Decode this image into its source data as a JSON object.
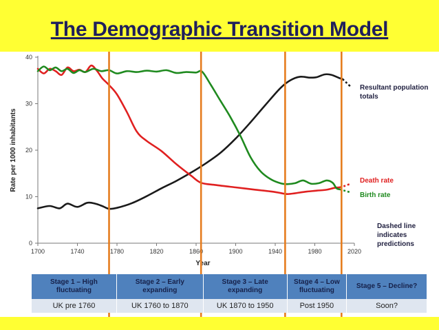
{
  "title": "The Demographic Transition Model",
  "chart_data": {
    "type": "line",
    "ylabel": "Rate per 1000 inhabitants",
    "xlabel": "Year",
    "xlim": [
      1700,
      2020
    ],
    "ylim": [
      0,
      40
    ],
    "xticks": [
      1700,
      1740,
      1780,
      1820,
      1860,
      1900,
      1940,
      1980,
      2020
    ],
    "yticks": [
      0,
      10,
      20,
      30,
      40
    ],
    "tick_labels_x": [
      "1700",
      "1740",
      "1780",
      "1820",
      "1860",
      "1900",
      "1940",
      "1980",
      "2020"
    ],
    "tick_labels_y": [
      "0",
      "10",
      "20",
      "30",
      "40"
    ],
    "grid": false,
    "stage_boundaries": [
      1772,
      1865,
      1950,
      2007
    ],
    "series": [
      {
        "name": "Resultant population totals",
        "color": "#1a1a1a",
        "x": [
          1700,
          1712,
          1722,
          1730,
          1740,
          1750,
          1758,
          1765,
          1772,
          1780,
          1795,
          1810,
          1825,
          1840,
          1855,
          1870,
          1885,
          1900,
          1915,
          1930,
          1945,
          1955,
          1965,
          1975,
          1982,
          1990,
          1997,
          2005,
          2008
        ],
        "y": [
          7.5,
          8,
          7.5,
          8.5,
          7.8,
          8.7,
          8.5,
          8,
          7.4,
          7.6,
          8.6,
          10.1,
          11.8,
          13.4,
          15.2,
          17.2,
          19.5,
          22.5,
          26,
          29.7,
          33.3,
          35,
          35.8,
          35.6,
          35.7,
          36.3,
          36.2,
          35.5,
          35.3
        ],
        "prediction_x": [
          2008,
          2012,
          2016
        ],
        "prediction_y": [
          35.3,
          34.5,
          33.7
        ]
      },
      {
        "name": "Death rate",
        "color": "#e02020",
        "x": [
          1700,
          1706,
          1712,
          1718,
          1724,
          1730,
          1736,
          1742,
          1748,
          1754,
          1760,
          1765,
          1772,
          1780,
          1790,
          1800,
          1810,
          1825,
          1840,
          1855,
          1865,
          1880,
          1900,
          1920,
          1940,
          1950,
          1955,
          1962,
          1972,
          1982,
          1992,
          2000,
          2005
        ],
        "y": [
          37.5,
          36.5,
          37.5,
          37,
          36.2,
          37.8,
          37,
          37.3,
          36.8,
          38.2,
          37,
          35.5,
          34,
          32,
          28.2,
          24,
          22,
          19.8,
          17,
          14.5,
          13,
          12.5,
          12,
          11.5,
          11,
          10.6,
          10.6,
          10.8,
          11.1,
          11.3,
          11.5,
          11.9,
          12
        ],
        "prediction_x": [
          2005,
          2010,
          2015
        ],
        "prediction_y": [
          12,
          12.3,
          12.7
        ]
      },
      {
        "name": "Birth rate",
        "color": "#1f8a1f",
        "x": [
          1700,
          1706,
          1712,
          1718,
          1724,
          1730,
          1736,
          1742,
          1748,
          1756,
          1764,
          1772,
          1780,
          1790,
          1800,
          1810,
          1820,
          1830,
          1840,
          1850,
          1860,
          1866,
          1875,
          1885,
          1895,
          1905,
          1915,
          1925,
          1935,
          1945,
          1952,
          1960,
          1968,
          1976,
          1984,
          1992,
          1998,
          2002,
          2005
        ],
        "y": [
          37,
          38,
          37.2,
          37.8,
          37,
          37.5,
          36.6,
          37.2,
          36.8,
          37.5,
          37,
          37.2,
          36.5,
          37,
          36.8,
          37.1,
          36.9,
          37.2,
          36.6,
          36.8,
          36.7,
          36.9,
          34,
          30.5,
          27,
          23,
          18.5,
          15.5,
          13.8,
          12.9,
          12.7,
          12.9,
          13.5,
          12.8,
          12.9,
          13.5,
          13,
          11.8,
          11.6
        ],
        "prediction_x": [
          2005,
          2010,
          2015
        ],
        "prediction_y": [
          11.6,
          11.3,
          11
        ]
      }
    ],
    "annotations": {
      "population_label": [
        "Resultant population",
        "totals"
      ],
      "death_label": "Death rate",
      "birth_label": "Birth rate",
      "dashed_note": [
        "Dashed line",
        "indicates",
        "predictions"
      ]
    }
  },
  "stages_table": {
    "headers": [
      [
        "Stage 1 – High",
        "fluctuating"
      ],
      [
        "Stage 2 – Early",
        "expanding"
      ],
      [
        "Stage 3 – Late",
        "expanding"
      ],
      [
        "Stage 4 – Low",
        "fluctuating"
      ],
      [
        "Stage 5 – Decline?"
      ]
    ],
    "periods": [
      "UK pre 1760",
      "UK 1760 to 1870",
      "UK  1870 to 1950",
      "Post 1950",
      "Soon?"
    ]
  },
  "colors": {
    "background": "#ffff33",
    "title": "#1f1f5c",
    "stage_line": "#e57c1e",
    "table_header": "#4f81bd",
    "table_row": "#dfe6f0"
  }
}
